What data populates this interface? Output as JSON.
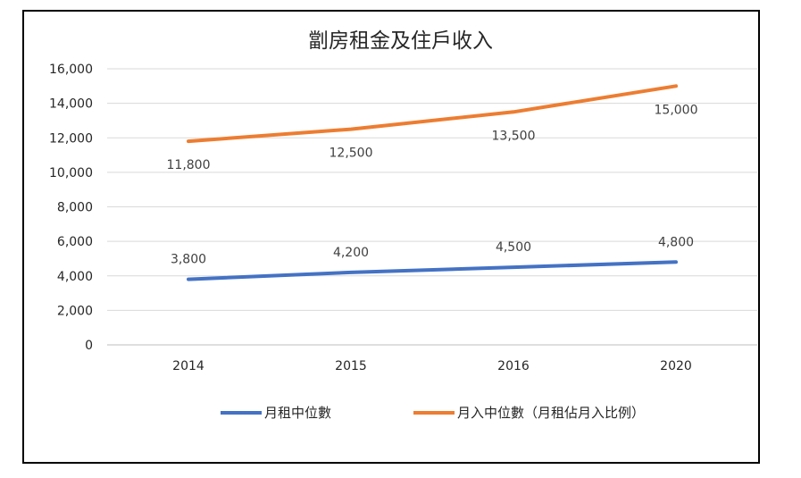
{
  "chart_data": {
    "type": "line",
    "title": "劏房租金及住戶收入",
    "categories": [
      "2014",
      "2015",
      "2016",
      "2020"
    ],
    "ylim": [
      0,
      16000
    ],
    "yticks": [
      "0",
      "2,000",
      "4,000",
      "6,000",
      "8,000",
      "10,000",
      "12,000",
      "14,000",
      "16,000"
    ],
    "grid": true,
    "legend_position": "bottom",
    "series": [
      {
        "name": "月租中位數",
        "color": "#4472C4",
        "values": [
          3800,
          4200,
          4500,
          4800
        ],
        "labels": [
          "3,800",
          "4,200",
          "4,500",
          "4,800"
        ]
      },
      {
        "name": "月入中位數（月租佔月入比例）",
        "color": "#ED7D31",
        "values": [
          11800,
          12500,
          13500,
          15000
        ],
        "labels": [
          "11,800",
          "12,500",
          "13,500",
          "15,000"
        ]
      }
    ]
  }
}
